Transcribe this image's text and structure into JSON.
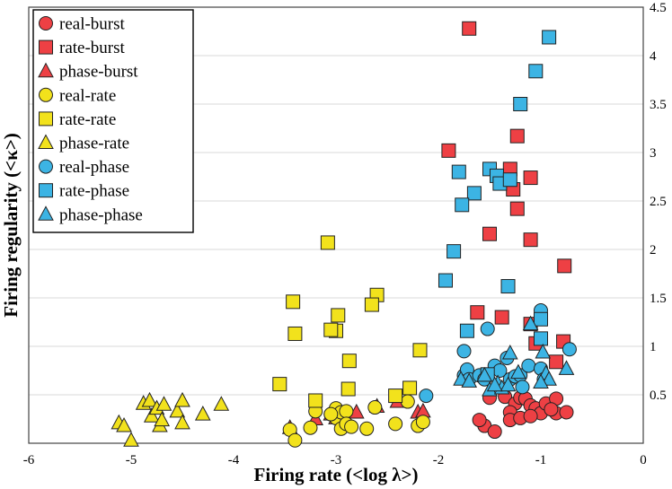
{
  "chart_data": {
    "type": "scatter",
    "xlabel": "Firing rate (<log λ>)",
    "ylabel": "Firing regularity (<κ>)",
    "xlim": [
      -6,
      0
    ],
    "ylim": [
      0,
      4.5
    ],
    "xticks": [
      "-6",
      "-5",
      "-4",
      "-3",
      "-2",
      "-1",
      "0"
    ],
    "yticks": [
      "0.5",
      "1",
      "1.5",
      "2",
      "2.5",
      "3",
      "3.5",
      "4",
      "4.5"
    ],
    "grid": "horizontal",
    "legend_position": "top-left",
    "colors": {
      "red": "#ee4044",
      "yellow": "#f2e21c",
      "blue": "#3cb4e4",
      "stroke": "#222222"
    },
    "series": [
      {
        "name": "real-burst",
        "marker": "circle",
        "color": "#ee4044",
        "points": [
          [
            -1.5,
            0.47
          ],
          [
            -1.55,
            0.18
          ],
          [
            -1.45,
            0.12
          ],
          [
            -1.6,
            0.24
          ],
          [
            -1.35,
            0.48
          ],
          [
            -1.25,
            0.41
          ],
          [
            -1.2,
            0.47
          ],
          [
            -1.15,
            0.46
          ],
          [
            -1.1,
            0.39
          ],
          [
            -1.3,
            0.32
          ],
          [
            -1.3,
            0.24
          ],
          [
            -1.2,
            0.26
          ],
          [
            -1.05,
            0.36
          ],
          [
            -1.0,
            0.31
          ],
          [
            -0.95,
            0.41
          ],
          [
            -0.85,
            0.46
          ],
          [
            -0.85,
            0.31
          ],
          [
            -0.75,
            0.32
          ],
          [
            -0.9,
            0.35
          ],
          [
            -1.1,
            0.28
          ]
        ]
      },
      {
        "name": "rate-burst",
        "marker": "square",
        "color": "#ee4044",
        "points": [
          [
            -1.7,
            4.28
          ],
          [
            -1.9,
            3.02
          ],
          [
            -1.23,
            3.17
          ],
          [
            -1.3,
            2.83
          ],
          [
            -1.27,
            2.62
          ],
          [
            -1.1,
            2.74
          ],
          [
            -1.5,
            2.16
          ],
          [
            -1.23,
            2.42
          ],
          [
            -1.1,
            2.1
          ],
          [
            -0.77,
            1.83
          ],
          [
            -1.62,
            1.35
          ],
          [
            -1.38,
            1.3
          ],
          [
            -1.1,
            1.23
          ],
          [
            -1.05,
            1.03
          ],
          [
            -0.78,
            1.05
          ],
          [
            -0.85,
            0.84
          ]
        ]
      },
      {
        "name": "phase-burst",
        "marker": "triangle",
        "color": "#ee4044",
        "points": [
          [
            -3.45,
            0.16
          ],
          [
            -3.2,
            0.25
          ],
          [
            -3.05,
            0.3
          ],
          [
            -2.8,
            0.32
          ],
          [
            -2.6,
            0.38
          ],
          [
            -2.4,
            0.43
          ],
          [
            -2.2,
            0.32
          ],
          [
            -2.15,
            0.33
          ],
          [
            -3.0,
            0.26
          ]
        ]
      },
      {
        "name": "real-rate",
        "marker": "circle",
        "color": "#f2e21c",
        "points": [
          [
            -3.45,
            0.14
          ],
          [
            -3.25,
            0.16
          ],
          [
            -3.2,
            0.33
          ],
          [
            -3.05,
            0.3
          ],
          [
            -3.0,
            0.36
          ],
          [
            -3.0,
            0.26
          ],
          [
            -2.95,
            0.32
          ],
          [
            -2.9,
            0.33
          ],
          [
            -2.95,
            0.15
          ],
          [
            -2.9,
            0.2
          ],
          [
            -2.85,
            0.17
          ],
          [
            -3.4,
            0.03
          ],
          [
            -2.7,
            0.15
          ],
          [
            -2.62,
            0.37
          ],
          [
            -2.42,
            0.2
          ],
          [
            -2.3,
            0.43
          ],
          [
            -2.2,
            0.18
          ],
          [
            -2.15,
            0.22
          ],
          [
            -3.05,
            0.3
          ]
        ]
      },
      {
        "name": "rate-rate",
        "marker": "square",
        "color": "#f2e21c",
        "points": [
          [
            -3.08,
            2.07
          ],
          [
            -2.6,
            1.53
          ],
          [
            -2.65,
            1.43
          ],
          [
            -3.42,
            1.46
          ],
          [
            -2.98,
            1.32
          ],
          [
            -3.0,
            1.16
          ],
          [
            -3.05,
            1.17
          ],
          [
            -3.4,
            1.13
          ],
          [
            -2.18,
            0.96
          ],
          [
            -2.87,
            0.85
          ],
          [
            -3.55,
            0.61
          ],
          [
            -2.88,
            0.56
          ],
          [
            -2.28,
            0.57
          ],
          [
            -2.42,
            0.49
          ],
          [
            -3.2,
            0.44
          ]
        ]
      },
      {
        "name": "phase-rate",
        "marker": "triangle",
        "color": "#f2e21c",
        "points": [
          [
            -5.12,
            0.21
          ],
          [
            -5.07,
            0.18
          ],
          [
            -5.0,
            0.03
          ],
          [
            -4.88,
            0.41
          ],
          [
            -4.82,
            0.44
          ],
          [
            -4.8,
            0.28
          ],
          [
            -4.75,
            0.36
          ],
          [
            -4.72,
            0.18
          ],
          [
            -4.7,
            0.24
          ],
          [
            -4.68,
            0.4
          ],
          [
            -4.55,
            0.33
          ],
          [
            -4.5,
            0.44
          ],
          [
            -4.5,
            0.21
          ],
          [
            -4.3,
            0.3
          ],
          [
            -4.12,
            0.4
          ]
        ]
      },
      {
        "name": "real-phase",
        "marker": "circle",
        "color": "#3cb4e4",
        "points": [
          [
            -2.12,
            0.49
          ],
          [
            -1.75,
            0.95
          ],
          [
            -1.75,
            0.7
          ],
          [
            -1.72,
            0.76
          ],
          [
            -1.7,
            0.66
          ],
          [
            -1.6,
            0.7
          ],
          [
            -1.55,
            0.66
          ],
          [
            -1.52,
            1.18
          ],
          [
            -1.45,
            0.8
          ],
          [
            -1.4,
            0.75
          ],
          [
            -1.33,
            0.88
          ],
          [
            -1.3,
            0.66
          ],
          [
            -1.25,
            0.69
          ],
          [
            -1.2,
            0.7
          ],
          [
            -1.18,
            0.58
          ],
          [
            -1.12,
            0.8
          ],
          [
            -1.0,
            1.37
          ],
          [
            -1.0,
            0.77
          ],
          [
            -0.97,
            0.66
          ],
          [
            -0.72,
            0.97
          ]
        ]
      },
      {
        "name": "rate-phase",
        "marker": "square",
        "color": "#3cb4e4",
        "points": [
          [
            -0.92,
            4.19
          ],
          [
            -1.05,
            3.84
          ],
          [
            -1.2,
            3.5
          ],
          [
            -1.8,
            2.8
          ],
          [
            -1.5,
            2.83
          ],
          [
            -1.43,
            2.76
          ],
          [
            -1.4,
            2.68
          ],
          [
            -1.3,
            2.72
          ],
          [
            -1.65,
            2.58
          ],
          [
            -1.77,
            2.46
          ],
          [
            -1.85,
            1.98
          ],
          [
            -1.93,
            1.68
          ],
          [
            -1.32,
            1.62
          ],
          [
            -1.0,
            1.28
          ],
          [
            -1.72,
            1.16
          ],
          [
            -1.0,
            1.08
          ],
          [
            -1.52,
            0.71
          ]
        ]
      },
      {
        "name": "phase-phase",
        "marker": "triangle",
        "color": "#3cb4e4",
        "points": [
          [
            -1.78,
            0.66
          ],
          [
            -1.7,
            0.64
          ],
          [
            -1.55,
            0.7
          ],
          [
            -1.5,
            0.55
          ],
          [
            -1.42,
            0.62
          ],
          [
            -1.38,
            0.57
          ],
          [
            -1.32,
            0.6
          ],
          [
            -1.3,
            0.93
          ],
          [
            -1.22,
            0.73
          ],
          [
            -1.1,
            1.23
          ],
          [
            -0.98,
            0.94
          ],
          [
            -0.95,
            0.72
          ],
          [
            -0.92,
            0.66
          ],
          [
            -0.75,
            0.77
          ],
          [
            -1.45,
            0.6
          ],
          [
            -1.0,
            0.63
          ]
        ]
      }
    ]
  }
}
